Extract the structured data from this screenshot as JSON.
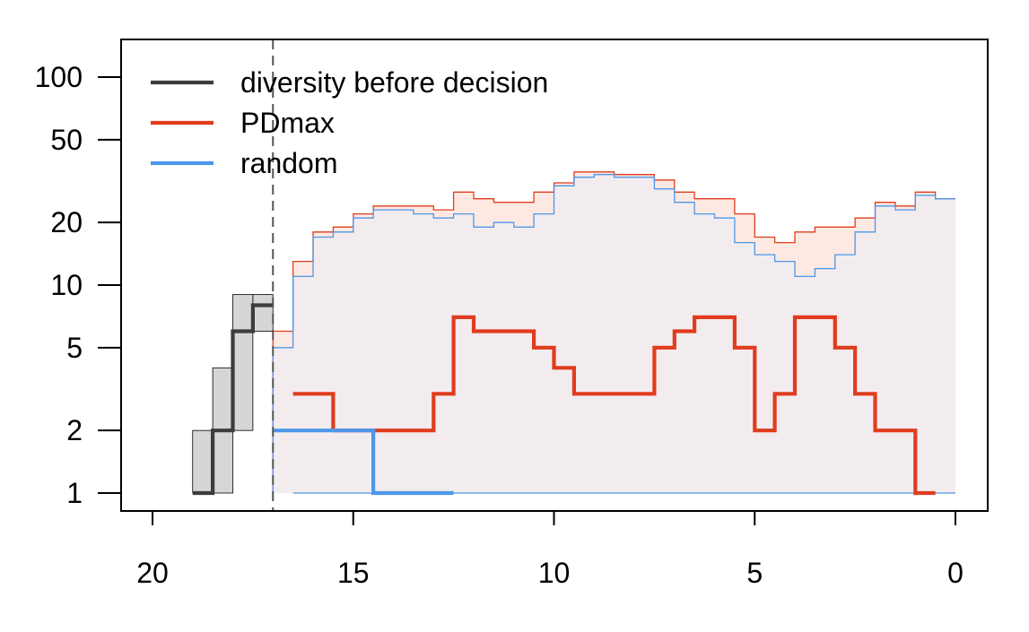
{
  "chart_data": {
    "type": "line",
    "title": "",
    "xlabel": "",
    "ylabel": "",
    "x_scale": "linear-reversed",
    "y_scale": "log",
    "xlim": [
      20.8,
      -0.8
    ],
    "ylim": [
      0.85,
      150
    ],
    "x_ticks": [
      20,
      15,
      10,
      5,
      0
    ],
    "y_ticks": [
      1,
      2,
      5,
      10,
      20,
      50,
      100
    ],
    "grid": false,
    "legend_position": "top-left",
    "decision_x": 17,
    "colors": {
      "diversity": "#3c3c3c",
      "pdmax": "#e03c1e",
      "random": "#4d97e8",
      "band": "#c8c8c8",
      "pdmax_fill": "#fde9e2",
      "random_fill": "#f3ecef"
    },
    "series": [
      {
        "name": "diversity before decision",
        "style": "step",
        "x": [
          19,
          18.5,
          18,
          17.5,
          17
        ],
        "values": [
          1,
          2,
          6,
          8,
          8
        ],
        "band_lower": [
          1,
          1,
          2,
          6,
          6
        ],
        "band_upper": [
          2,
          4,
          9,
          9,
          9
        ]
      },
      {
        "name": "PDmax",
        "style": "step",
        "x": [
          16.5,
          15.5,
          14.5,
          13,
          12.5,
          12,
          10.5,
          10,
          9.5,
          7.5,
          7,
          6.5,
          5.5,
          5,
          4.5,
          4,
          3.5,
          3,
          2.5,
          2,
          1,
          0.5
        ],
        "values": [
          3,
          2,
          2,
          3,
          7,
          6,
          5,
          4,
          3,
          5,
          6,
          7,
          5,
          2,
          3,
          7,
          7,
          5,
          3,
          2,
          1,
          1
        ]
      },
      {
        "name": "random",
        "style": "step",
        "x": [
          17,
          14.5,
          12.5
        ],
        "values": [
          2,
          1,
          1
        ]
      }
    ],
    "cumulative_pdmax": {
      "x": [
        17,
        16.5,
        16,
        15.5,
        15,
        14.5,
        14,
        13.5,
        13,
        12.5,
        12,
        11.5,
        11,
        10.5,
        10,
        9.5,
        9,
        8.5,
        8,
        7.5,
        7,
        6.5,
        6,
        5.5,
        5,
        4.5,
        4,
        3.5,
        3,
        2.5,
        2,
        1.5,
        1,
        0.5,
        0
      ],
      "values": [
        6,
        13,
        18,
        19,
        22,
        24,
        24,
        24,
        23,
        28,
        26,
        25,
        25,
        28,
        31,
        35,
        35,
        34,
        34,
        32,
        28,
        26,
        26,
        22,
        17,
        16,
        18,
        19,
        19,
        21,
        25,
        24,
        28,
        26,
        26
      ]
    },
    "cumulative_random": {
      "x": [
        17,
        16.5,
        16,
        15.5,
        15,
        14.5,
        14,
        13.5,
        13,
        12.5,
        12,
        11.5,
        11,
        10.5,
        10,
        9.5,
        9,
        8.5,
        8,
        7.5,
        7,
        6.5,
        6,
        5.5,
        5,
        4.5,
        4,
        3.5,
        3,
        2.5,
        2,
        1.5,
        1,
        0.5,
        0
      ],
      "values": [
        5,
        11,
        17,
        18,
        21,
        23,
        23,
        22,
        21,
        22,
        19,
        20,
        19,
        22,
        30,
        33,
        34,
        33,
        33,
        29,
        25,
        22,
        21,
        16,
        14,
        13,
        11,
        12,
        14,
        18,
        24,
        23,
        27,
        26,
        26
      ],
      "baseline": 1
    }
  }
}
